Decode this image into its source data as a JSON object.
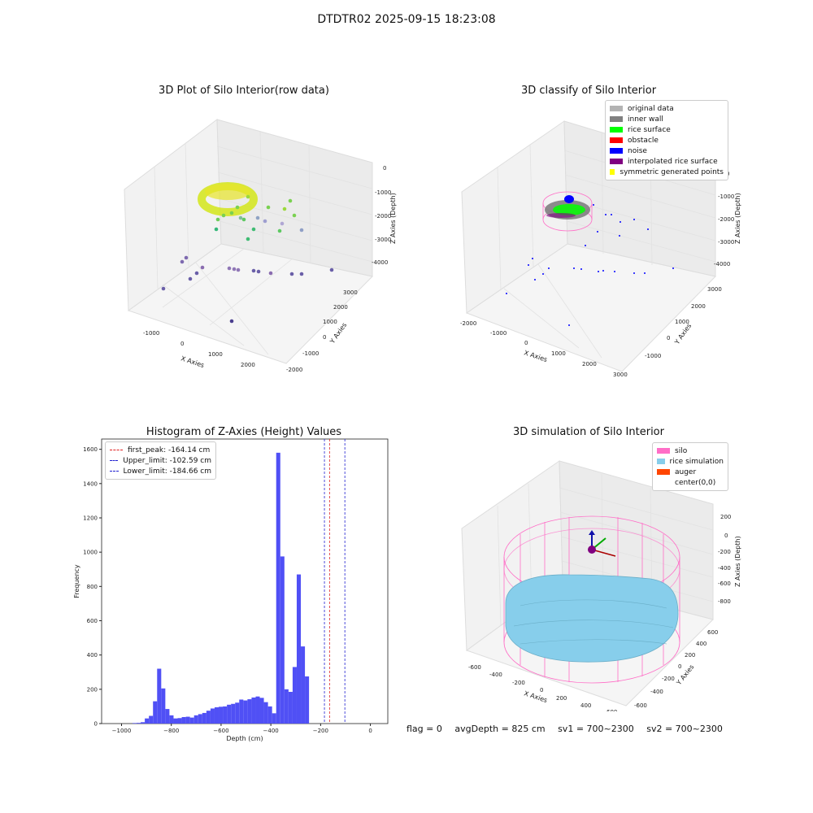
{
  "suptitle": "DTDTR02 2025-09-15 18:23:08",
  "footer": {
    "flag": "flag = 0",
    "avg_depth": "avgDepth = 825 cm",
    "sv1": "sv1 = 700~2300",
    "sv2": "sv2 = 700~2300"
  },
  "colors": {
    "histogram_bar": "#5050f5",
    "first_peak_line": "#e02020",
    "limit_lines": "#2020d0",
    "silo": "#ff6ec7",
    "rice_simulation": "#87ceeb",
    "auger": "#ff4500",
    "inner_wall": "#808080",
    "rice_surface": "#00ff00",
    "obstacle": "#ff0000",
    "noise": "#0000ff",
    "interpolated": "#800080",
    "symmetric": "#ffff00",
    "original": "#b3b3b3"
  },
  "chart_data": [
    {
      "type": "scatter",
      "projection": "3d",
      "title": "3D Plot of Silo Interior(row data)",
      "xlabel": "X Axies",
      "ylabel": "Y Axies",
      "zlabel": "Z Axies (Depth)",
      "x_ticks": [
        "-1000",
        "0",
        "1000",
        "2000"
      ],
      "y_ticks": [
        "-2000",
        "-1000",
        "0",
        "1000",
        "2000",
        "3000"
      ],
      "z_ticks": [
        "-4000",
        "-3000",
        "-2000",
        "-1000",
        "0"
      ],
      "colormap": "viridis"
    },
    {
      "type": "scatter",
      "projection": "3d",
      "title": "3D classify of Silo Interior",
      "xlabel": "X Axies",
      "ylabel": "Y Axies",
      "zlabel": "Z Axies (Depth)",
      "x_ticks": [
        "-2000",
        "-1000",
        "0",
        "1000",
        "2000",
        "3000"
      ],
      "y_ticks": [
        "-1000",
        "0",
        "1000",
        "2000",
        "3000"
      ],
      "z_ticks": [
        "-4000",
        "-3000",
        "-2000",
        "-1000",
        "0"
      ],
      "legend": [
        "original data",
        "inner wall",
        "rice surface",
        "obstacle",
        "noise",
        "interpolated rice surface",
        "symmetric generated points"
      ],
      "legend_position": "top-right"
    },
    {
      "type": "bar",
      "title": "Histogram of Z-Axies (Height) Values",
      "xlabel": "Depth (cm)",
      "ylabel": "Frequency",
      "xlim": [
        -1080,
        70
      ],
      "ylim": [
        0,
        1660
      ],
      "x_ticks": [
        -1000,
        -800,
        -600,
        -400,
        -200,
        0
      ],
      "y_ticks": [
        0,
        200,
        400,
        600,
        800,
        1000,
        1200,
        1400,
        1600
      ],
      "bin_width": 16.5,
      "bin_start": -956,
      "values": [
        3,
        4,
        8,
        30,
        45,
        130,
        320,
        205,
        85,
        48,
        30,
        32,
        38,
        40,
        35,
        48,
        55,
        62,
        75,
        88,
        95,
        98,
        100,
        110,
        115,
        122,
        140,
        135,
        142,
        152,
        158,
        150,
        125,
        100,
        60,
        1580,
        975,
        200,
        185,
        330,
        870,
        450,
        275
      ],
      "vlines": [
        {
          "label": "first_peak: -164.14 cm",
          "x": -164.14,
          "style": "dashed",
          "color_key": "first_peak_line"
        },
        {
          "label": "Upper_limit: -102.59 cm",
          "x": -102.59,
          "style": "dashed",
          "color_key": "limit_lines"
        },
        {
          "label": "Lower_limit: -184.66 cm",
          "x": -184.66,
          "style": "dashed",
          "color_key": "limit_lines"
        }
      ],
      "legend_position": "top-left"
    },
    {
      "type": "surface",
      "projection": "3d",
      "title": "3D simulation of Silo Interior",
      "xlabel": "X Axies",
      "ylabel": "Y Axies",
      "zlabel": "Z Axies (Depth)",
      "x_ticks": [
        "-600",
        "-400",
        "-200",
        "0",
        "200",
        "400",
        "600"
      ],
      "y_ticks": [
        "-600",
        "-400",
        "-200",
        "0",
        "200",
        "400",
        "600"
      ],
      "z_ticks": [
        "-800",
        "-600",
        "-400",
        "-200",
        "0",
        "200"
      ],
      "legend": [
        "silo",
        "rice simulation",
        "auger",
        "center(0,0)"
      ],
      "legend_position": "top-right"
    }
  ]
}
